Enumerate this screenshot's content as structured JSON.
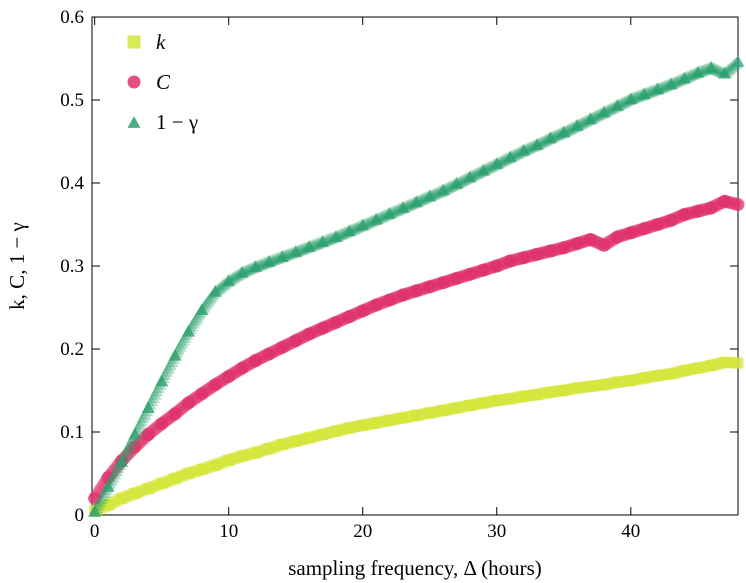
{
  "chart_data": {
    "type": "scatter",
    "title": "",
    "xlabel": "sampling frequency, Δ (hours)",
    "ylabel": "k, C, 1 − γ",
    "xlim": [
      -0.2,
      48
    ],
    "ylim": [
      0,
      0.6
    ],
    "xticks": [
      "0",
      "10",
      "20",
      "30",
      "40"
    ],
    "yticks": [
      "0",
      "0.1",
      "0.2",
      "0.3",
      "0.4",
      "0.5",
      "0.6"
    ],
    "grid": false,
    "legend_position": "top-left",
    "series": [
      {
        "name": "k",
        "marker": "square",
        "color": "#d4e639",
        "x": [
          0,
          1,
          2,
          3,
          4,
          5,
          6,
          7,
          8,
          9,
          10,
          11,
          12,
          13,
          14,
          15,
          16,
          17,
          18,
          19,
          20,
          21,
          22,
          23,
          24,
          25,
          26,
          27,
          28,
          29,
          30,
          31,
          32,
          33,
          34,
          35,
          36,
          37,
          38,
          39,
          40,
          41,
          42,
          43,
          44,
          45,
          46,
          47,
          48
        ],
        "y": [
          0.005,
          0.012,
          0.02,
          0.026,
          0.032,
          0.038,
          0.044,
          0.05,
          0.055,
          0.06,
          0.066,
          0.071,
          0.075,
          0.08,
          0.085,
          0.089,
          0.093,
          0.097,
          0.101,
          0.105,
          0.108,
          0.111,
          0.114,
          0.117,
          0.12,
          0.123,
          0.126,
          0.129,
          0.132,
          0.135,
          0.138,
          0.14,
          0.143,
          0.145,
          0.148,
          0.15,
          0.153,
          0.155,
          0.157,
          0.16,
          0.162,
          0.165,
          0.168,
          0.17,
          0.174,
          0.177,
          0.18,
          0.184,
          0.183
        ]
      },
      {
        "name": "C",
        "marker": "circle",
        "color": "#e0306a",
        "x": [
          0,
          1,
          2,
          3,
          4,
          5,
          6,
          7,
          8,
          9,
          10,
          11,
          12,
          13,
          14,
          15,
          16,
          17,
          18,
          19,
          20,
          21,
          22,
          23,
          24,
          25,
          26,
          27,
          28,
          29,
          30,
          31,
          32,
          33,
          34,
          35,
          36,
          37,
          38,
          39,
          40,
          41,
          42,
          43,
          44,
          45,
          46,
          47,
          48
        ],
        "y": [
          0.02,
          0.045,
          0.065,
          0.082,
          0.097,
          0.11,
          0.122,
          0.135,
          0.146,
          0.157,
          0.167,
          0.177,
          0.186,
          0.194,
          0.202,
          0.21,
          0.218,
          0.225,
          0.232,
          0.239,
          0.246,
          0.253,
          0.259,
          0.265,
          0.27,
          0.275,
          0.28,
          0.285,
          0.29,
          0.295,
          0.3,
          0.306,
          0.31,
          0.314,
          0.318,
          0.322,
          0.327,
          0.332,
          0.325,
          0.335,
          0.34,
          0.345,
          0.35,
          0.355,
          0.362,
          0.366,
          0.37,
          0.378,
          0.374
        ]
      },
      {
        "name": "1 − γ",
        "marker": "triangle",
        "color": "#2aa06e",
        "x": [
          0,
          1,
          2,
          3,
          4,
          5,
          6,
          7,
          8,
          9,
          10,
          11,
          12,
          13,
          14,
          15,
          16,
          17,
          18,
          19,
          20,
          21,
          22,
          23,
          24,
          25,
          26,
          27,
          28,
          29,
          30,
          31,
          32,
          33,
          34,
          35,
          36,
          37,
          38,
          39,
          40,
          41,
          42,
          43,
          44,
          45,
          46,
          47,
          48
        ],
        "y": [
          0.005,
          0.035,
          0.065,
          0.098,
          0.13,
          0.162,
          0.193,
          0.222,
          0.248,
          0.27,
          0.283,
          0.293,
          0.3,
          0.306,
          0.312,
          0.318,
          0.324,
          0.33,
          0.336,
          0.343,
          0.35,
          0.357,
          0.364,
          0.371,
          0.378,
          0.385,
          0.392,
          0.4,
          0.408,
          0.416,
          0.424,
          0.432,
          0.44,
          0.447,
          0.455,
          0.462,
          0.47,
          0.478,
          0.486,
          0.494,
          0.502,
          0.508,
          0.514,
          0.52,
          0.527,
          0.534,
          0.54,
          0.533,
          0.547
        ]
      }
    ]
  }
}
